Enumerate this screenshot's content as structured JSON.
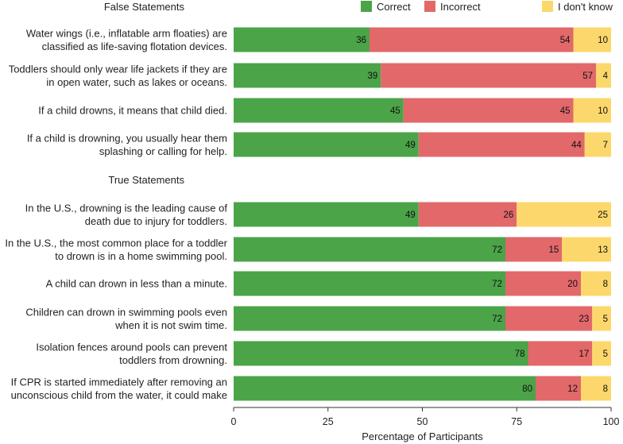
{
  "chart_data": {
    "type": "bar",
    "orientation": "horizontal",
    "stacked": true,
    "xlabel": "Percentage of Participants",
    "xlim": [
      0,
      100
    ],
    "xticks": [
      0,
      25,
      50,
      75,
      100
    ],
    "grid": false,
    "legend_position": "top-right",
    "groups": [
      {
        "label": "False Statements",
        "categories": [
          [
            "Water wings (i.e., inflatable arm floaties) are",
            "classified as life-saving flotation devices."
          ],
          [
            "Toddlers should only wear life jackets if they are",
            "in open water, such as lakes or oceans."
          ],
          [
            "If a child drowns, it means that child died."
          ],
          [
            "If a child is drowning, you usually hear them",
            "splashing or calling for help."
          ]
        ]
      },
      {
        "label": "True Statements",
        "categories": [
          [
            "In the U.S., drowning is the leading cause of",
            "death due to injury for toddlers."
          ],
          [
            "In the U.S., the most common place for a toddler",
            "to drown is in a home swimming pool."
          ],
          [
            "A child can drown in less than a minute."
          ],
          [
            "Children can drown in swimming pools even",
            "when it is not swim time."
          ],
          [
            "Isolation fences around pools can prevent",
            "toddlers from drowning."
          ],
          [
            "If CPR is started immediately after removing an",
            "unconscious child from the water, it could make"
          ]
        ]
      }
    ],
    "series": [
      {
        "name": "Correct",
        "color": "#4ba448",
        "values": [
          36,
          39,
          45,
          49,
          49,
          72,
          72,
          72,
          78,
          80
        ]
      },
      {
        "name": "Incorrect",
        "color": "#e2686a",
        "values": [
          54,
          57,
          45,
          44,
          26,
          15,
          20,
          23,
          17,
          12
        ]
      },
      {
        "name": "I don't know",
        "color": "#fcd86c",
        "values": [
          10,
          4,
          10,
          7,
          25,
          13,
          8,
          5,
          5,
          8
        ]
      }
    ]
  }
}
